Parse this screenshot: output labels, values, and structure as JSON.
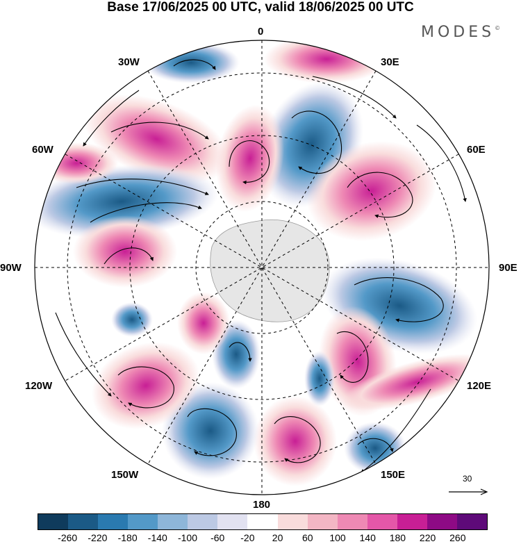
{
  "header": {
    "title": "Base 17/06/2025 00 UTC, valid 18/06/2025 00 UTC",
    "brand": "MODES",
    "brand_mark": "©"
  },
  "map": {
    "projection": "south polar stereographic",
    "longitude_labels": {
      "top": "0",
      "top_left": "30W",
      "top_right": "30E",
      "upper_left": "60W",
      "upper_right": "60E",
      "left": "90W",
      "right": "90E",
      "lower_left": "120W",
      "lower_right": "120E",
      "bottom_left": "150W",
      "bottom_right": "150E",
      "bottom": "180"
    },
    "anomaly_centers": [
      {
        "lon": 20,
        "lat": -50,
        "sign": "negative"
      },
      {
        "lon": -5,
        "lat": -52,
        "sign": "positive"
      },
      {
        "lon": -40,
        "lat": -45,
        "sign": "positive"
      },
      {
        "lon": -65,
        "lat": -50,
        "sign": "negative"
      },
      {
        "lon": -80,
        "lat": -62,
        "sign": "positive"
      },
      {
        "lon": 55,
        "lat": -50,
        "sign": "positive"
      },
      {
        "lon": 100,
        "lat": -50,
        "sign": "negative"
      },
      {
        "lon": 135,
        "lat": -52,
        "sign": "positive"
      },
      {
        "lon": 160,
        "lat": -55,
        "sign": "positive"
      },
      {
        "lon": -145,
        "lat": -48,
        "sign": "negative"
      },
      {
        "lon": -120,
        "lat": -45,
        "sign": "positive"
      },
      {
        "lon": 150,
        "lat": -35,
        "sign": "negative"
      }
    ]
  },
  "reference_vector": {
    "value": "30"
  },
  "colorbar": {
    "colors": [
      "#0f3b5c",
      "#1b5a86",
      "#2a7ab0",
      "#5399c8",
      "#8eb6d9",
      "#bcc9e4",
      "#e2e2f1",
      "#ffffff",
      "#f9dcdc",
      "#f3b6c4",
      "#ee89b4",
      "#e457a8",
      "#c81f95",
      "#8e0a85",
      "#5e0a79"
    ],
    "ticks": [
      "-260",
      "-220",
      "-180",
      "-140",
      "-100",
      "-60",
      "-20",
      "20",
      "60",
      "100",
      "140",
      "180",
      "220",
      "260"
    ]
  }
}
